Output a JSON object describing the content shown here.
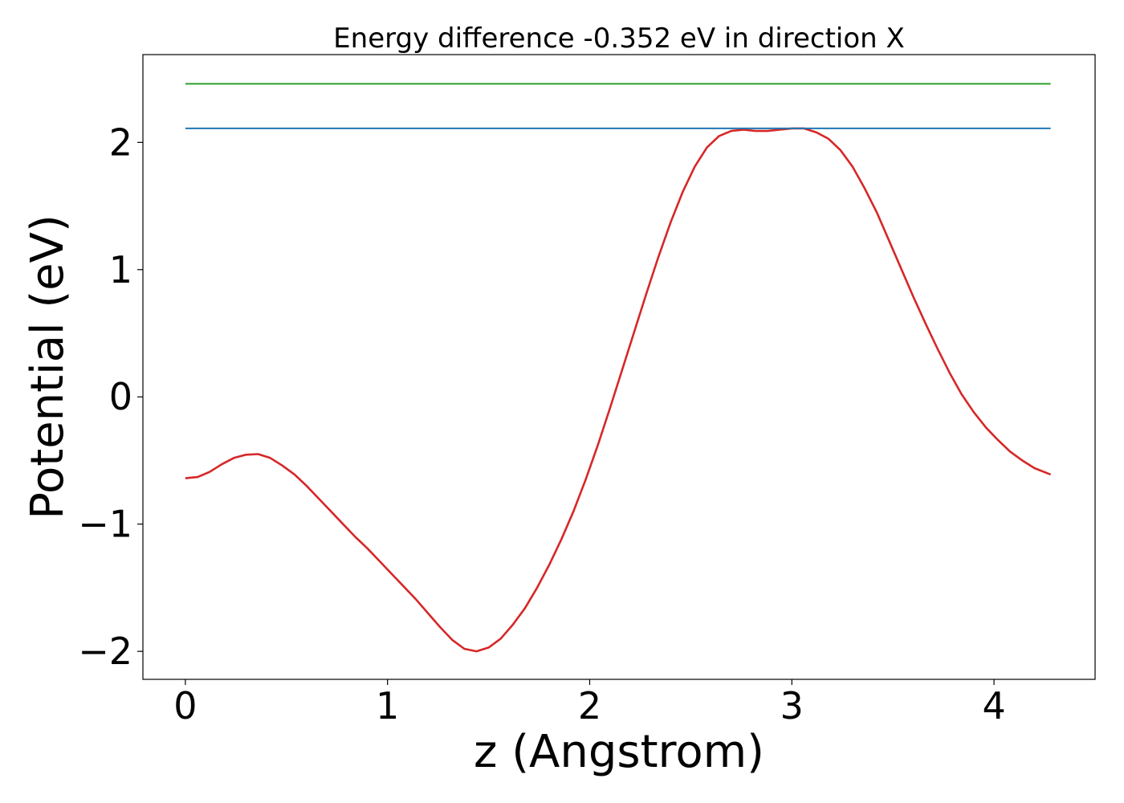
{
  "chart_data": {
    "type": "line",
    "title": "Energy difference -0.352 eV in direction X",
    "xlabel": "z (Angstrom)",
    "ylabel": "Potential (eV)",
    "xlim": [
      -0.21,
      4.5
    ],
    "ylim": [
      -2.22,
      2.69
    ],
    "xticks": [
      0,
      1,
      2,
      3,
      4
    ],
    "yticks": [
      -2,
      -1,
      0,
      1,
      2
    ],
    "xtick_labels": [
      "0",
      "1",
      "2",
      "3",
      "4"
    ],
    "ytick_labels": [
      "−2",
      "−1",
      "0",
      "1",
      "2"
    ],
    "grid": false,
    "legend": "none",
    "series": [
      {
        "color": "#d62728",
        "x": [
          0,
          0.06,
          0.12,
          0.18,
          0.24,
          0.3,
          0.36,
          0.42,
          0.48,
          0.54,
          0.6,
          0.66,
          0.72,
          0.78,
          0.84,
          0.9,
          0.96,
          1.02,
          1.08,
          1.14,
          1.2,
          1.26,
          1.32,
          1.38,
          1.44,
          1.5,
          1.56,
          1.62,
          1.68,
          1.74,
          1.8,
          1.86,
          1.92,
          1.98,
          2.04,
          2.1,
          2.16,
          2.22,
          2.28,
          2.34,
          2.4,
          2.46,
          2.52,
          2.58,
          2.64,
          2.7,
          2.76,
          2.82,
          2.88,
          2.94,
          3.0,
          3.06,
          3.12,
          3.18,
          3.24,
          3.3,
          3.36,
          3.42,
          3.48,
          3.54,
          3.6,
          3.66,
          3.72,
          3.78,
          3.84,
          3.9,
          3.96,
          4.02,
          4.08,
          4.14,
          4.2,
          4.28
        ],
        "y": [
          -0.64,
          -0.63,
          -0.59,
          -0.53,
          -0.48,
          -0.455,
          -0.45,
          -0.48,
          -0.54,
          -0.61,
          -0.7,
          -0.8,
          -0.9,
          -1.0,
          -1.1,
          -1.19,
          -1.29,
          -1.39,
          -1.49,
          -1.59,
          -1.7,
          -1.81,
          -1.91,
          -1.98,
          -2.0,
          -1.97,
          -1.9,
          -1.79,
          -1.66,
          -1.5,
          -1.32,
          -1.12,
          -0.9,
          -0.65,
          -0.38,
          -0.09,
          0.21,
          0.51,
          0.81,
          1.1,
          1.37,
          1.61,
          1.81,
          1.96,
          2.05,
          2.09,
          2.1,
          2.09,
          2.09,
          2.1,
          2.11,
          2.11,
          2.08,
          2.03,
          1.94,
          1.81,
          1.64,
          1.45,
          1.23,
          1.01,
          0.79,
          0.58,
          0.38,
          0.19,
          0.02,
          -0.12,
          -0.24,
          -0.34,
          -0.43,
          -0.5,
          -0.56,
          -0.61
        ]
      },
      {
        "color": "#1f77b4",
        "x": [
          0,
          4.28
        ],
        "y": [
          2.11,
          2.11
        ]
      },
      {
        "color": "#2ca02c",
        "x": [
          0,
          4.28
        ],
        "y": [
          2.46,
          2.46
        ]
      }
    ]
  }
}
